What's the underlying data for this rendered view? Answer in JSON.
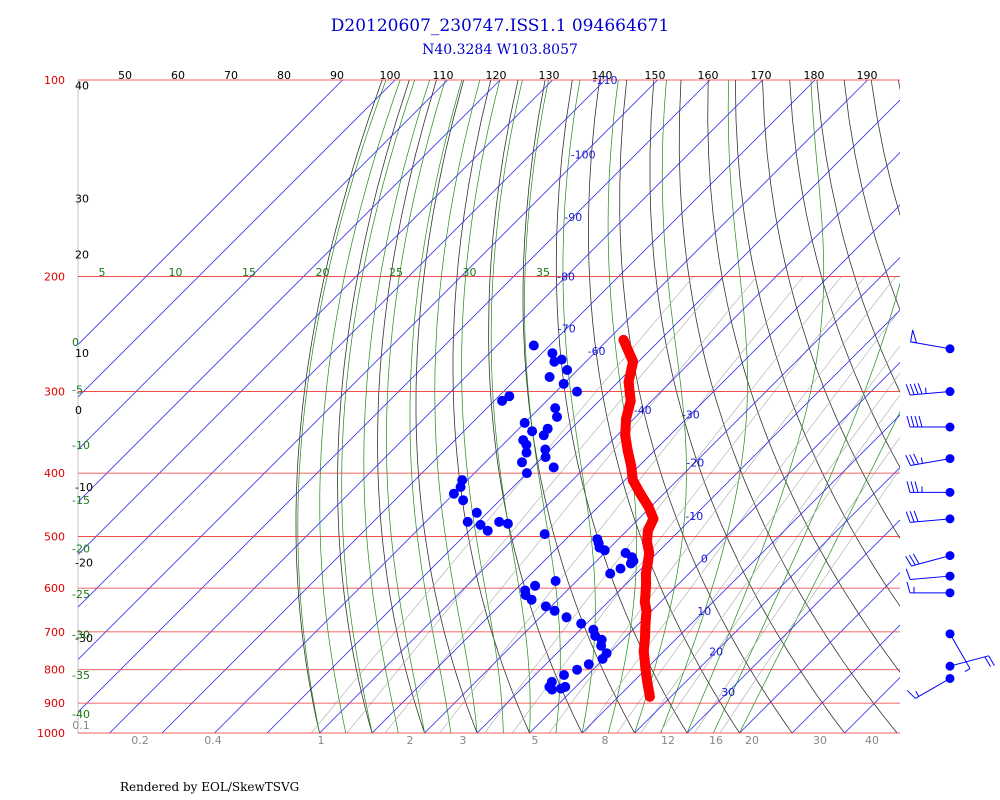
{
  "chart_data": {
    "type": "scatter",
    "title": "D20120607_230747.ISS1.1 094664671",
    "subtitle": "N40.3284 W103.8057",
    "pressure_labels": [
      "100",
      "200",
      "300",
      "400",
      "500",
      "600",
      "700",
      "800",
      "900",
      "1000"
    ],
    "pressure_values": [
      100,
      200,
      300,
      400,
      500,
      600,
      700,
      800,
      900,
      1000
    ],
    "top_axis_labels": [
      "50",
      "60",
      "70",
      "80",
      "90",
      "100",
      "110",
      "120",
      "130",
      "140",
      "150",
      "160",
      "170",
      "180",
      "190"
    ],
    "left_axis_labels": [
      {
        "text": "40",
        "p": 102
      },
      {
        "text": "30",
        "p": 152
      },
      {
        "text": "20",
        "p": 185
      },
      {
        "text": "10",
        "p": 262
      },
      {
        "text": "0",
        "p": 320
      },
      {
        "text": "-10",
        "p": 420
      },
      {
        "text": "-20",
        "p": 548
      },
      {
        "text": "-30",
        "p": 715
      }
    ],
    "isotherm_labels": [
      {
        "text": "-110",
        "t": -110,
        "p": 100
      },
      {
        "text": "-100",
        "t": -100,
        "p": 130
      },
      {
        "text": "-90",
        "t": -90,
        "p": 162
      },
      {
        "text": "-80",
        "t": -80,
        "p": 200
      },
      {
        "text": "-70",
        "t": -70,
        "p": 240
      },
      {
        "text": "-60",
        "t": -60,
        "p": 260
      },
      {
        "text": "-40",
        "t": -40,
        "p": 320
      },
      {
        "text": "-30",
        "t": -30,
        "p": 325
      },
      {
        "text": "-20",
        "t": -20,
        "p": 385
      },
      {
        "text": "-10",
        "t": -10,
        "p": 465
      },
      {
        "text": "0",
        "t": 0,
        "p": 540
      },
      {
        "text": "10",
        "t": 10,
        "p": 650
      },
      {
        "text": "20",
        "t": 20,
        "p": 750
      },
      {
        "text": "30",
        "t": 30,
        "p": 865
      }
    ],
    "moist_adiabat_labels": [
      "5",
      "10",
      "15",
      "20",
      "25",
      "30",
      "35"
    ],
    "moist_left_labels": [
      {
        "text": "0",
        "p": 252
      },
      {
        "text": "-5",
        "p": 298
      },
      {
        "text": "-10",
        "p": 362
      },
      {
        "text": "-15",
        "p": 440
      },
      {
        "text": "-20",
        "p": 522
      },
      {
        "text": "-25",
        "p": 613
      },
      {
        "text": "-30",
        "p": 707
      },
      {
        "text": "-35",
        "p": 815
      },
      {
        "text": "-40",
        "p": 935
      }
    ],
    "mixing_ratio_labels": [
      "0.1",
      "0.2",
      "0.4",
      "1",
      "2",
      "3",
      "5",
      "8",
      "12",
      "16",
      "20",
      "30",
      "40"
    ],
    "temperature": {
      "p": [
        250,
        270,
        290,
        310,
        330,
        350,
        370,
        390,
        410,
        430,
        450,
        470,
        490,
        510,
        530,
        550,
        570,
        590,
        610,
        630,
        650,
        670,
        690,
        710,
        730,
        750,
        770,
        790,
        810,
        830,
        850,
        870,
        880
      ],
      "t": [
        -57.0,
        -51.0,
        -48.0,
        -44.0,
        -41.5,
        -38.5,
        -35.0,
        -31.5,
        -28.5,
        -24.5,
        -20.5,
        -17.2,
        -16.0,
        -14.0,
        -11.5,
        -9.8,
        -8.2,
        -6.3,
        -4.6,
        -3.0,
        -1.0,
        0.5,
        2.0,
        3.5,
        4.9,
        6.2,
        7.8,
        9.3,
        10.8,
        12.3,
        13.8,
        15.3,
        16.0
      ]
    },
    "dewpoint": {
      "p": [
        255,
        262,
        268,
        270,
        278,
        285,
        292,
        300,
        305,
        310,
        318,
        328,
        335,
        342,
        345,
        350,
        356,
        362,
        368,
        372,
        378,
        385,
        392,
        400,
        410,
        420,
        430,
        440,
        460,
        475,
        480,
        475,
        478,
        490,
        496,
        505,
        512,
        520,
        525,
        530,
        538,
        545,
        550,
        560,
        570,
        585,
        595,
        605,
        615,
        625,
        640,
        650,
        665,
        680,
        695,
        710,
        720,
        735,
        755,
        770,
        785,
        800,
        815,
        835,
        850,
        858,
        855,
        850
      ],
      "t": [
        -73.0,
        -68.0,
        -65.0,
        -66.0,
        -62.0,
        -64.0,
        -60.0,
        -56.0,
        -68.0,
        -68.5,
        -57.0,
        -55.0,
        -60.0,
        -54.5,
        -57.0,
        -54.0,
        -57.0,
        -55.5,
        -51.0,
        -54.0,
        -49.5,
        -53.0,
        -46.0,
        -50.0,
        -61.0,
        -60.0,
        -60.0,
        -57.0,
        -52.0,
        -52.0,
        -49.0,
        -46.0,
        -44.0,
        -46.5,
        -35.0,
        -24.0,
        -23.0,
        -22.0,
        -20.5,
        -16.0,
        -14.0,
        -13.0,
        -13.0,
        -14.0,
        -15.0,
        -24.0,
        -27.0,
        -28.0,
        -27.0,
        -25.0,
        -21.0,
        -18.5,
        -15.0,
        -11.0,
        -7.5,
        -6.0,
        -4.0,
        -3.0,
        -0.5,
        -0.2,
        -1.8,
        -3.0,
        -4.5,
        -5.5,
        -5.0,
        -4.0,
        -2.5,
        -2.0
      ]
    },
    "wind_levels": [
      {
        "p": 258,
        "dir": 280,
        "spd": 50
      },
      {
        "p": 300,
        "dir": 265,
        "spd": 45
      },
      {
        "p": 340,
        "dir": 270,
        "spd": 40
      },
      {
        "p": 380,
        "dir": 260,
        "spd": 35
      },
      {
        "p": 428,
        "dir": 270,
        "spd": 35
      },
      {
        "p": 470,
        "dir": 265,
        "spd": 30
      },
      {
        "p": 535,
        "dir": 255,
        "spd": 30
      },
      {
        "p": 575,
        "dir": 265,
        "spd": 10
      },
      {
        "p": 610,
        "dir": 270,
        "spd": 15
      },
      {
        "p": 705,
        "dir": 150,
        "spd": 5
      },
      {
        "p": 790,
        "dir": 75,
        "spd": 20
      },
      {
        "p": 825,
        "dir": 240,
        "spd": 15
      }
    ],
    "temperature_color": "#ff0000",
    "dewpoint_color": "#0000ff"
  },
  "footer": "Rendered by EOL/SkewTSVG"
}
